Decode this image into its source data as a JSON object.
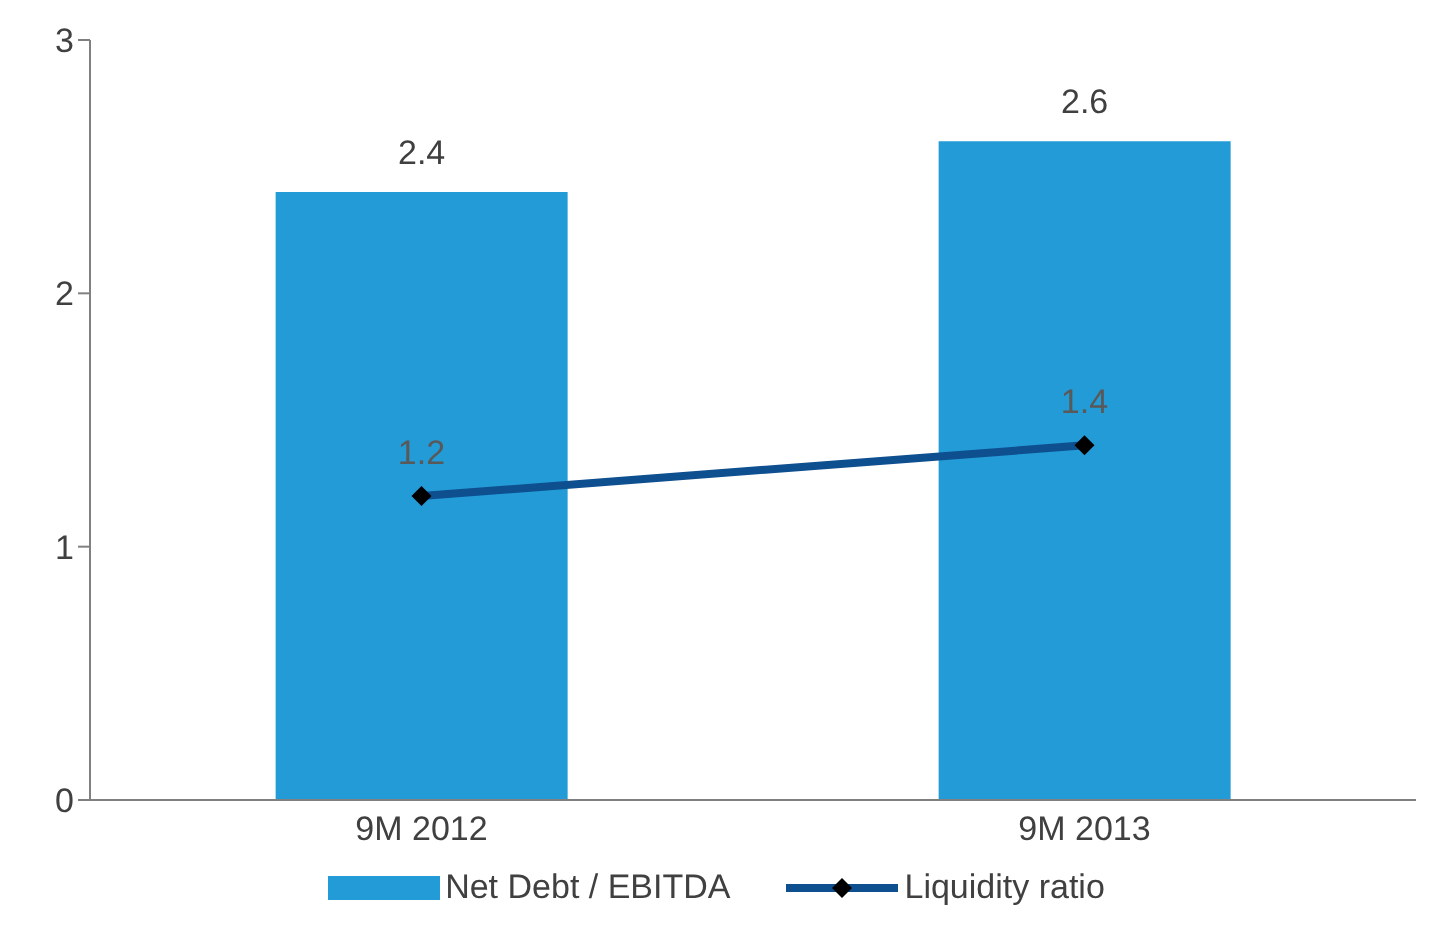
{
  "chart_data": {
    "type": "bar",
    "categories": [
      "9M 2012",
      "9M 2013"
    ],
    "series": [
      {
        "name": "Net Debt / EBITDA",
        "color": "#239bd6",
        "values": [
          2.4,
          2.6
        ]
      },
      {
        "name": "Liquidity ratio",
        "type": "line",
        "color": "#0d4f8f",
        "values": [
          1.2,
          1.4
        ]
      }
    ],
    "ylim": [
      0,
      3
    ],
    "yticks": [
      0,
      1,
      2,
      3
    ],
    "grid": false,
    "legend": "bottom",
    "data_labels": true,
    "marker": "diamond",
    "line_style": "solid"
  }
}
